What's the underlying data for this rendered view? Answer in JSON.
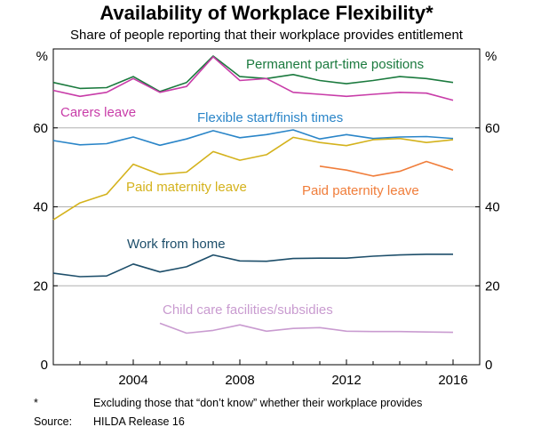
{
  "chart_data": {
    "type": "line",
    "title": "Availability of Workplace Flexibility*",
    "subtitle": "Share of people reporting that their workplace provides entitlement",
    "y_unit_left": "%",
    "y_unit_right": "%",
    "ylim": [
      0,
      80
    ],
    "yticks": [
      0,
      20,
      40,
      60
    ],
    "xlim": [
      2001,
      2017
    ],
    "xticks": [
      2004,
      2008,
      2012,
      2016
    ],
    "grid": true,
    "series": [
      {
        "name": "Permanent part-time positions",
        "color": "#1b7a3e",
        "x": [
          2001,
          2002,
          2003,
          2004,
          2005,
          2006,
          2007,
          2008,
          2009,
          2010,
          2011,
          2012,
          2013,
          2014,
          2015,
          2016
        ],
        "values": [
          71.5,
          70,
          70.2,
          73,
          69.2,
          71.5,
          78.2,
          73,
          72.5,
          73.5,
          72,
          71.2,
          72,
          73,
          72.5,
          71.5
        ]
      },
      {
        "name": "Carers leave",
        "color": "#c83ca8",
        "x": [
          2001,
          2002,
          2003,
          2004,
          2005,
          2006,
          2007,
          2008,
          2009,
          2010,
          2011,
          2012,
          2013,
          2014,
          2015,
          2016
        ],
        "values": [
          69.5,
          68,
          69,
          72.5,
          69,
          70.5,
          78,
          72,
          72.5,
          69,
          68.5,
          68,
          68.5,
          69,
          68.8,
          67
        ]
      },
      {
        "name": "Flexible start/finish times",
        "color": "#2a85c8",
        "x": [
          2001,
          2002,
          2003,
          2004,
          2005,
          2006,
          2007,
          2008,
          2009,
          2010,
          2011,
          2012,
          2013,
          2014,
          2015,
          2016
        ],
        "values": [
          56.8,
          55.7,
          56,
          57.7,
          55.6,
          57.2,
          59.3,
          57.5,
          58.3,
          59.5,
          57.2,
          58.3,
          57.3,
          57.7,
          57.8,
          57.3
        ]
      },
      {
        "name": "Paid maternity leave",
        "color": "#d4b21c",
        "x": [
          2001,
          2002,
          2003,
          2004,
          2005,
          2006,
          2007,
          2008,
          2009,
          2010,
          2011,
          2012,
          2013,
          2014,
          2015,
          2016
        ],
        "values": [
          36.7,
          41,
          43.2,
          50.8,
          48.2,
          48.8,
          54,
          51.8,
          53.2,
          57.6,
          56.3,
          55.5,
          57,
          57.3,
          56.3,
          57
        ]
      },
      {
        "name": "Paid paternity leave",
        "color": "#f07d3a",
        "x": [
          2011,
          2012,
          2013,
          2014,
          2015,
          2016
        ],
        "values": [
          50.3,
          49.3,
          47.8,
          49,
          51.5,
          49.3
        ]
      },
      {
        "name": "Work from home",
        "color": "#1d4e6a",
        "x": [
          2001,
          2002,
          2003,
          2004,
          2005,
          2006,
          2007,
          2008,
          2009,
          2010,
          2011,
          2012,
          2013,
          2014,
          2015,
          2016
        ],
        "values": [
          23.2,
          22.3,
          22.5,
          25.5,
          23.5,
          24.8,
          27.8,
          26.3,
          26.2,
          26.9,
          27,
          27,
          27.5,
          27.8,
          28,
          28
        ]
      },
      {
        "name": "Child care facilities/subsidies",
        "color": "#c99bd0",
        "x": [
          2005,
          2006,
          2007,
          2008,
          2009,
          2010,
          2011,
          2012,
          2013,
          2014,
          2015,
          2016
        ],
        "values": [
          10.5,
          8,
          8.7,
          10.1,
          8.5,
          9.2,
          9.4,
          8.5,
          8.4,
          8.4,
          8.3,
          8.2
        ]
      }
    ]
  },
  "notes": {
    "footnote_marker": "*",
    "footnote_text": "Excluding those that “don’t know” whether their workplace provides",
    "source_label": "Source:",
    "source_text": "HILDA Release 16"
  }
}
